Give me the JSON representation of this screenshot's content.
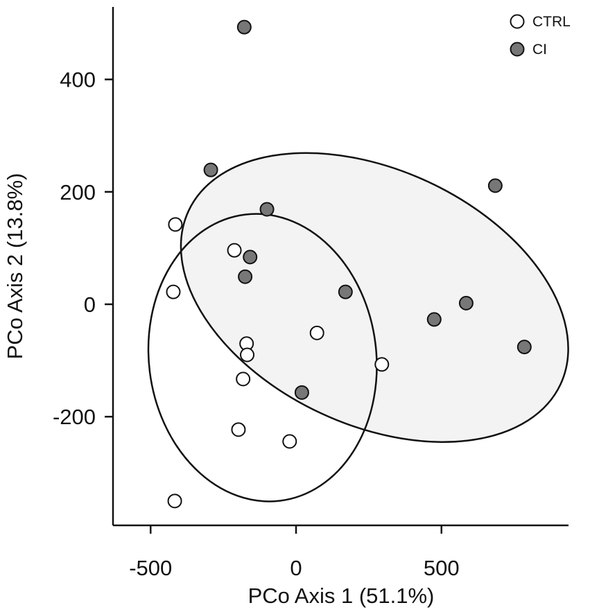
{
  "chart_data": {
    "type": "scatter",
    "title": "",
    "xlabel": "PCo Axis 1 (51.1%)",
    "ylabel": "PCo Axis 2 (13.8%)",
    "xlim": [
      -620,
      930
    ],
    "ylim": [
      -390,
      525
    ],
    "xticks": [
      -500,
      0,
      500
    ],
    "yticks": [
      -200,
      0,
      200,
      400
    ],
    "xtick_labels": [
      "-500",
      "0",
      "500"
    ],
    "ytick_labels": [
      "-200",
      "0",
      "200",
      "400"
    ],
    "grid": false,
    "legend_position": "top-right",
    "series": [
      {
        "name": "CTRL",
        "fill": "#ffffff",
        "points": [
          {
            "x": -415,
            "y": 142
          },
          {
            "x": -422,
            "y": 22
          },
          {
            "x": -212,
            "y": 96
          },
          {
            "x": -170,
            "y": -70
          },
          {
            "x": -168,
            "y": -90
          },
          {
            "x": -182,
            "y": -133
          },
          {
            "x": -198,
            "y": -223
          },
          {
            "x": -22,
            "y": -244
          },
          {
            "x": 72,
            "y": -51
          },
          {
            "x": 295,
            "y": -107
          },
          {
            "x": -417,
            "y": -350
          }
        ],
        "ellipse": {
          "cx": -115,
          "cy": -95,
          "rx": 395,
          "ry": 348,
          "rotation_deg": 7
        }
      },
      {
        "name": "CI",
        "fill": "#777777",
        "points": [
          {
            "x": -178,
            "y": 493
          },
          {
            "x": -293,
            "y": 239
          },
          {
            "x": -100,
            "y": 169
          },
          {
            "x": -158,
            "y": 84
          },
          {
            "x": -175,
            "y": 49
          },
          {
            "x": 170,
            "y": 22
          },
          {
            "x": 20,
            "y": -157
          },
          {
            "x": 475,
            "y": -27
          },
          {
            "x": 585,
            "y": 2
          },
          {
            "x": 685,
            "y": 211
          },
          {
            "x": 785,
            "y": -76
          }
        ],
        "ellipse": {
          "cx": 270,
          "cy": 12,
          "rx": 1100,
          "ry": 438,
          "rotation_deg": 25,
          "fill": "#f3f3f3"
        }
      }
    ]
  }
}
